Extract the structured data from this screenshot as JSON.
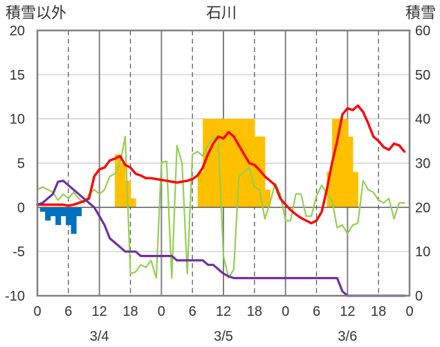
{
  "chart_data": {
    "type": "bar+line",
    "title": "石川",
    "ylabel_left": "積雪以外",
    "ylabel_right": "積雪",
    "ylim_left": [
      -10,
      20
    ],
    "ylim_right": [
      0,
      60
    ],
    "yticks_left": [
      "20",
      "15",
      "10",
      "5",
      "0",
      "-5",
      "-10"
    ],
    "yticks_right": [
      "60",
      "50",
      "40",
      "30",
      "20",
      "10",
      "0"
    ],
    "x_hour_ticks": [
      "0",
      "6",
      "12",
      "18",
      "0",
      "6",
      "12",
      "18",
      "0",
      "6",
      "12",
      "18",
      "0"
    ],
    "x_date_labels": [
      "3/4",
      "3/5",
      "3/6"
    ],
    "x_range_hours": [
      0,
      72
    ],
    "grid": true,
    "colors": {
      "bars_positive": "#ffc000",
      "bars_negative": "#0070c0",
      "red_line": "#ff0000",
      "green_line": "#92d050",
      "purple_line": "#7030a0",
      "frame": "#808080"
    },
    "bars_positive": {
      "axis": "left",
      "hours": [
        15,
        16,
        17,
        18,
        31,
        32,
        33,
        34,
        35,
        36,
        37,
        38,
        39,
        40,
        41,
        42,
        43,
        44,
        56,
        57,
        58,
        59,
        60,
        61
      ],
      "values": [
        6,
        5,
        3,
        1,
        4,
        10,
        10,
        10,
        10,
        10,
        10,
        10,
        10,
        10,
        10,
        8,
        8,
        2,
        4,
        10,
        10,
        10,
        8,
        4
      ]
    },
    "bars_negative": {
      "axis": "left",
      "hours": [
        1,
        2,
        3,
        4,
        5,
        6,
        7,
        8
      ],
      "values": [
        -0.5,
        -1.5,
        -1,
        -2,
        -1,
        -2,
        -3,
        -1
      ]
    },
    "series": [
      {
        "color": "#ff0000",
        "axis": "left",
        "x": [
          0,
          1,
          2,
          3,
          4,
          5,
          6,
          7,
          8,
          9,
          10,
          11,
          12,
          13,
          14,
          15,
          16,
          17,
          18,
          19,
          20,
          21,
          22,
          23,
          24,
          25,
          26,
          27,
          28,
          29,
          30,
          31,
          32,
          33,
          34,
          35,
          36,
          37,
          38,
          39,
          40,
          41,
          42,
          43,
          44,
          45,
          46,
          47,
          48,
          49,
          50,
          51,
          52,
          53,
          54,
          55,
          56,
          57,
          58,
          59,
          60,
          61,
          62,
          63,
          64,
          65,
          66,
          67,
          68,
          69,
          70,
          71
        ],
        "values": [
          0.3,
          0.3,
          0.3,
          0.3,
          0.3,
          0.3,
          0.2,
          0.3,
          0.5,
          0.7,
          1.0,
          3.5,
          4.3,
          4.5,
          5.3,
          5.5,
          5.8,
          4.8,
          4.5,
          3.8,
          3.6,
          3.3,
          3.3,
          3.2,
          3.1,
          3.0,
          2.9,
          2.8,
          2.9,
          3.0,
          3.2,
          3.6,
          4.5,
          6.0,
          7.2,
          8.0,
          7.8,
          8.5,
          8.0,
          7.0,
          6.0,
          5.0,
          4.8,
          4.2,
          3.5,
          3.0,
          2.5,
          1.0,
          0.3,
          -0.3,
          -0.8,
          -1.2,
          -1.5,
          -1.8,
          -1.5,
          -0.5,
          2.0,
          5.0,
          7.5,
          10.5,
          11.2,
          11.0,
          11.5,
          10.8,
          9.5,
          8.0,
          7.5,
          6.8,
          6.5,
          7.2,
          7.0,
          6.3
        ]
      },
      {
        "color": "#92d050",
        "axis": "left",
        "x": [
          0,
          1,
          2,
          3,
          4,
          5,
          6,
          7,
          8,
          9,
          10,
          11,
          12,
          13,
          14,
          15,
          16,
          17,
          18,
          19,
          20,
          21,
          22,
          23,
          24,
          25,
          26,
          27,
          28,
          29,
          30,
          31,
          32,
          33,
          34,
          35,
          36,
          37,
          38,
          39,
          40,
          41,
          42,
          43,
          44,
          45,
          46,
          47,
          48,
          49,
          50,
          51,
          52,
          53,
          54,
          55,
          56,
          57,
          58,
          59,
          60,
          61,
          62,
          63,
          64,
          65,
          66,
          67,
          68,
          69,
          70,
          71
        ],
        "values": [
          2.0,
          2.3,
          2.0,
          1.7,
          0.8,
          1.5,
          1.0,
          1.7,
          1.0,
          0.5,
          1.5,
          2.0,
          1.5,
          2.0,
          3.5,
          3.8,
          5.0,
          8.0,
          -7.5,
          -7.3,
          -6.5,
          -6.8,
          -6.0,
          -8.0,
          5.1,
          5.2,
          -8.0,
          7.0,
          5.0,
          -7.5,
          6.0,
          6.3,
          5.8,
          7.0,
          8.0,
          7.5,
          -5.5,
          -8.0,
          -7.0,
          3.5,
          4.0,
          4.5,
          2.3,
          2.0,
          -1.3,
          0.5,
          2.7,
          1.5,
          -1.5,
          -1.5,
          1.5,
          1.5,
          -1.0,
          -1.0,
          1.3,
          2.5,
          1.5,
          0.8,
          -2.3,
          -2.0,
          -3.0,
          -2.0,
          -1.8,
          3.0,
          2.0,
          1.7,
          0.8,
          0.5,
          1.0,
          -1.3,
          0.5,
          0.5
        ]
      },
      {
        "color": "#7030a0",
        "axis": "left",
        "x": [
          0,
          1,
          2,
          3,
          4,
          5,
          6,
          7,
          8,
          9,
          10,
          11,
          12,
          13,
          14,
          15,
          16,
          17,
          18,
          19,
          20,
          21,
          22,
          23,
          24,
          25,
          26,
          27,
          28,
          29,
          30,
          31,
          32,
          33,
          34,
          35,
          36,
          37,
          38,
          39,
          40,
          41,
          42,
          43,
          44,
          45,
          46,
          47,
          48,
          49,
          50,
          51,
          52,
          53,
          54,
          55,
          56,
          57,
          58,
          59,
          60,
          61,
          62,
          63,
          64,
          65,
          66,
          67,
          68,
          69,
          70,
          71
        ],
        "values": [
          0.3,
          0.5,
          1.0,
          1.5,
          2.9,
          3.0,
          2.5,
          2.0,
          1.5,
          1.0,
          0.5,
          0.0,
          -1.0,
          -2.0,
          -3.5,
          -4.0,
          -4.5,
          -5.0,
          -5.0,
          -5.0,
          -5.5,
          -5.5,
          -5.5,
          -5.5,
          -5.5,
          -5.5,
          -5.5,
          -6.0,
          -6.0,
          -6.0,
          -6.0,
          -6.0,
          -6.0,
          -6.5,
          -6.5,
          -7.0,
          -7.5,
          -7.8,
          -8.0,
          -8.0,
          -8.0,
          -8.0,
          -8.0,
          -8.0,
          -8.0,
          -8.0,
          -8.0,
          -8.0,
          -8.0,
          -8.0,
          -8.0,
          -8.0,
          -8.0,
          -8.0,
          -8.0,
          -8.0,
          -8.0,
          -8.0,
          -8.0,
          -9.5,
          -10.0,
          -10.0,
          -10.0,
          -10.0,
          -10.0,
          -10.0,
          -10.0,
          -10.0,
          -10.0,
          -10.0,
          -10.0,
          -10.0
        ]
      }
    ]
  }
}
